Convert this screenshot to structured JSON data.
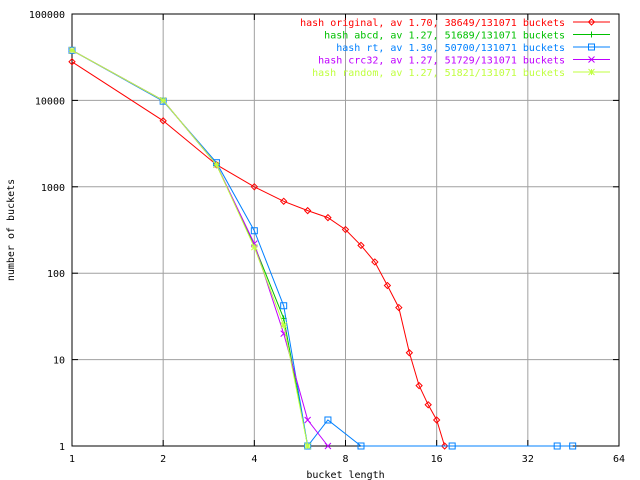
{
  "chart_data": {
    "type": "line",
    "title": "",
    "xlabel": "bucket length",
    "ylabel": "number of buckets",
    "xscale": "log2",
    "yscale": "log10",
    "xlim": [
      1,
      64
    ],
    "ylim": [
      1,
      100000
    ],
    "xticks": [
      1,
      2,
      4,
      8,
      16,
      32,
      64
    ],
    "xtick_labels": [
      "1",
      "2",
      "4",
      "8",
      "16",
      "32",
      "64"
    ],
    "yticks": [
      1,
      10,
      100,
      1000,
      10000,
      100000
    ],
    "ytick_labels": [
      "1",
      "10",
      "100",
      "1000",
      "10000",
      "100000"
    ],
    "grid": true,
    "legend_position": "top-right",
    "series": [
      {
        "name": "hash original, av 1.70, 38649/131071 buckets",
        "color": "#ff0000",
        "marker": "diamond",
        "points": [
          [
            1,
            28000
          ],
          [
            2,
            5800
          ],
          [
            3,
            1800
          ],
          [
            4,
            1000
          ],
          [
            5,
            680
          ],
          [
            6,
            530
          ],
          [
            7,
            440
          ],
          [
            8,
            320
          ],
          [
            9,
            210
          ],
          [
            10,
            135
          ],
          [
            11,
            72
          ],
          [
            12,
            40
          ],
          [
            13,
            12
          ],
          [
            14,
            5
          ],
          [
            15,
            3
          ],
          [
            16,
            2
          ],
          [
            17,
            1
          ]
        ]
      },
      {
        "name": "hash abcd, av 1.27, 51689/131071 buckets",
        "color": "#00c000",
        "marker": "plus",
        "points": [
          [
            1,
            38000
          ],
          [
            2,
            10000
          ],
          [
            3,
            1800
          ],
          [
            4,
            210
          ],
          [
            5,
            30
          ],
          [
            6,
            1
          ]
        ]
      },
      {
        "name": "hash rt, av 1.30, 50700/131071 buckets",
        "color": "#0080ff",
        "marker": "square",
        "points": [
          [
            1,
            38000
          ],
          [
            2,
            9800
          ],
          [
            3,
            1900
          ],
          [
            4,
            310
          ],
          [
            5,
            42
          ],
          [
            6,
            1
          ],
          [
            7,
            2
          ],
          [
            9,
            1
          ],
          [
            18,
            1
          ],
          [
            40,
            1
          ],
          [
            45,
            1
          ]
        ]
      },
      {
        "name": "hash crc32, av 1.27, 51729/131071 buckets",
        "color": "#c000ff",
        "marker": "x",
        "points": [
          [
            1,
            38000
          ],
          [
            2,
            10000
          ],
          [
            3,
            1800
          ],
          [
            4,
            220
          ],
          [
            5,
            20
          ],
          [
            6,
            2
          ],
          [
            7,
            1
          ]
        ]
      },
      {
        "name": "hash random, av 1.27, 51821/131071 buckets",
        "color": "#c0ff40",
        "marker": "star",
        "points": [
          [
            1,
            38000
          ],
          [
            2,
            10000
          ],
          [
            3,
            1800
          ],
          [
            4,
            200
          ],
          [
            5,
            25
          ],
          [
            6,
            1
          ]
        ]
      }
    ]
  }
}
